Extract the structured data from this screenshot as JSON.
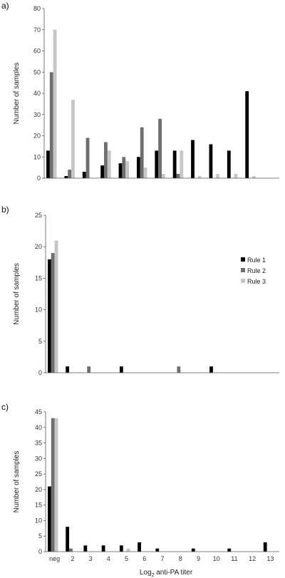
{
  "colors": {
    "rule1": "#000000",
    "rule2": "#6e6e6e",
    "rule3": "#c6c6c6",
    "axis": "#555555"
  },
  "x_axis_title": {
    "base": "Log",
    "subscript": "2",
    "rest": " anti-PA titer"
  },
  "legend": [
    "Rule 1",
    "Rule 2",
    "Rule 3"
  ],
  "chart_data": [
    {
      "type": "bar",
      "panel_label": "a)",
      "ylabel": "Number of samples",
      "ylim": [
        0,
        80
      ],
      "yticks": [
        0,
        10,
        20,
        30,
        40,
        50,
        60,
        70,
        80
      ],
      "categories": [
        "neg",
        "2",
        "3",
        "4",
        "5",
        "6",
        "7",
        "8",
        "9",
        "10",
        "11",
        "12",
        "13"
      ],
      "show_category_labels": false,
      "show_legend": false,
      "series": [
        {
          "name": "Rule 1",
          "values": [
            13,
            1,
            3,
            6,
            7,
            10,
            13,
            13,
            18,
            16,
            13,
            41,
            0
          ]
        },
        {
          "name": "Rule 2",
          "values": [
            50,
            4,
            19,
            17,
            10,
            24,
            28,
            2,
            0,
            0,
            0,
            0,
            0
          ]
        },
        {
          "name": "Rule 3",
          "values": [
            70,
            37,
            0,
            13,
            8,
            5,
            2,
            13,
            1,
            2,
            2,
            1,
            0
          ]
        }
      ]
    },
    {
      "type": "bar",
      "panel_label": "b)",
      "ylabel": "Number of samples",
      "ylim": [
        0,
        25
      ],
      "yticks": [
        0,
        5,
        10,
        15,
        20,
        25
      ],
      "categories": [
        "neg",
        "2",
        "3",
        "4",
        "5",
        "6",
        "7",
        "8",
        "9",
        "10",
        "11",
        "12",
        "13"
      ],
      "show_category_labels": false,
      "show_legend": true,
      "series": [
        {
          "name": "Rule 1",
          "values": [
            18,
            1,
            0,
            0,
            1,
            0,
            0,
            0,
            0,
            1,
            0,
            0,
            0
          ]
        },
        {
          "name": "Rule 2",
          "values": [
            19,
            0,
            1,
            0,
            0,
            0,
            0,
            1,
            0,
            0,
            0,
            0,
            0
          ]
        },
        {
          "name": "Rule 3",
          "values": [
            21,
            0,
            0,
            0,
            0,
            0,
            0,
            0,
            0,
            0,
            0,
            0,
            0
          ]
        }
      ]
    },
    {
      "type": "bar",
      "panel_label": "c)",
      "ylabel": "Number of samples",
      "ylim": [
        0,
        45
      ],
      "yticks": [
        0,
        5,
        10,
        15,
        20,
        25,
        30,
        35,
        40,
        45
      ],
      "categories": [
        "neg",
        "2",
        "3",
        "4",
        "5",
        "6",
        "7",
        "8",
        "9",
        "10",
        "11",
        "12",
        "13"
      ],
      "show_category_labels": true,
      "show_legend": false,
      "series": [
        {
          "name": "Rule 1",
          "values": [
            21,
            8,
            2,
            2,
            2,
            3,
            1,
            0,
            1,
            0,
            1,
            0,
            3
          ]
        },
        {
          "name": "Rule 2",
          "values": [
            43,
            1,
            0,
            0,
            0,
            0,
            0,
            0,
            0,
            0,
            0,
            0,
            0
          ]
        },
        {
          "name": "Rule 3",
          "values": [
            43,
            0,
            0,
            0,
            1,
            0,
            0,
            0,
            0,
            0,
            0,
            0,
            0
          ]
        }
      ]
    }
  ]
}
